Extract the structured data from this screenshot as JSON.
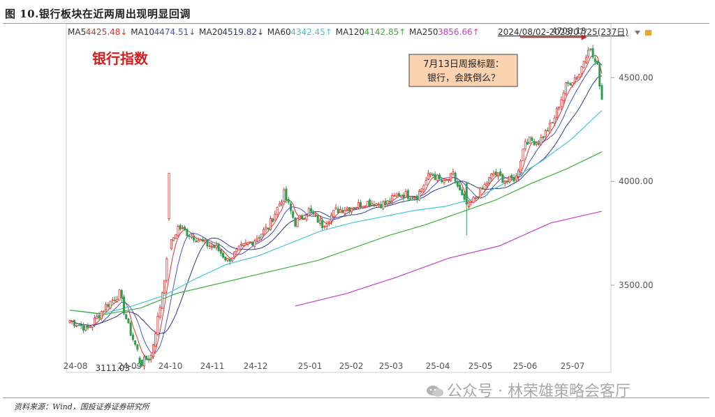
{
  "figure_title": "图 10.银行板块在近两周出现明显回调",
  "source": "资料来源：Wind，国投证券证券研究所",
  "watermark": "公众号 · 林荣雄策略会客厅",
  "colors": {
    "up": "#e0322f",
    "down": "#2e9e4e",
    "ma5": "#e0322f",
    "ma10": "#4a54c8",
    "ma20": "#2a3a8c",
    "ma60": "#3fc7d8",
    "ma120": "#3fae3f",
    "ma250": "#c83ec8",
    "annotation": "#d21e1e",
    "callout_fill": "#fbd3b1"
  },
  "chart_data": {
    "type": "candlestick",
    "title": "银行指数",
    "header": {
      "items": [
        {
          "name": "MA5",
          "value": "4425.48",
          "arrow": "down",
          "color": "#e0322f"
        },
        {
          "name": "MA10",
          "value": "4474.51",
          "arrow": "down",
          "color": "#4a54c8"
        },
        {
          "name": "MA20",
          "value": "4519.82",
          "arrow": "down",
          "color": "#2a3a8c"
        },
        {
          "name": "MA60",
          "value": "4342.45",
          "arrow": "up",
          "color": "#3fc7d8"
        },
        {
          "name": "MA120",
          "value": "4142.85",
          "arrow": "up",
          "color": "#3fae3f"
        },
        {
          "name": "MA250",
          "value": "3856.66",
          "arrow": "up",
          "color": "#c83ec8"
        }
      ],
      "range": "2024/08/02-2025/07/25(237日)"
    },
    "y_ticks": [
      "4500.00",
      "4000.00",
      "3500.00"
    ],
    "y_tick_values": [
      4500,
      4000,
      3500
    ],
    "ylim": [
      3080,
      4760
    ],
    "x_ticks": [
      "24-08",
      "24-09",
      "24-10",
      "24-11",
      "24-12",
      "25-01",
      "25-02",
      "25-03",
      "25-04",
      "25-05",
      "25-06",
      "25-07"
    ],
    "n_days": 237,
    "anchors": [
      [
        0,
        3330
      ],
      [
        8,
        3290
      ],
      [
        16,
        3400
      ],
      [
        22,
        3460
      ],
      [
        26,
        3300
      ],
      [
        32,
        3125
      ],
      [
        36,
        3160
      ],
      [
        40,
        3400
      ],
      [
        44,
        3680
      ],
      [
        48,
        3780
      ],
      [
        54,
        3740
      ],
      [
        60,
        3700
      ],
      [
        65,
        3680
      ],
      [
        70,
        3620
      ],
      [
        76,
        3680
      ],
      [
        82,
        3720
      ],
      [
        88,
        3780
      ],
      [
        95,
        3940
      ],
      [
        100,
        3800
      ],
      [
        106,
        3860
      ],
      [
        112,
        3790
      ],
      [
        118,
        3860
      ],
      [
        126,
        3880
      ],
      [
        132,
        3900
      ],
      [
        140,
        3890
      ],
      [
        146,
        3940
      ],
      [
        154,
        3930
      ],
      [
        160,
        4040
      ],
      [
        166,
        3990
      ],
      [
        170,
        4030
      ],
      [
        176,
        3870
      ],
      [
        182,
        3950
      ],
      [
        188,
        4040
      ],
      [
        194,
        4000
      ],
      [
        198,
        4020
      ],
      [
        202,
        4200
      ],
      [
        208,
        4190
      ],
      [
        214,
        4280
      ],
      [
        220,
        4460
      ],
      [
        226,
        4520
      ],
      [
        230,
        4650
      ],
      [
        234,
        4550
      ],
      [
        236,
        4400
      ]
    ],
    "special_candles": [
      {
        "day": 44,
        "open": 3820,
        "close": 4040,
        "high": 4040,
        "low": 3810
      },
      {
        "day": 176,
        "open": 3990,
        "close": 3890,
        "high": 4000,
        "low": 3740
      },
      {
        "day": 31,
        "open": 3150,
        "close": 3125,
        "high": 3160,
        "low": 3111.03
      }
    ],
    "ma60_values": [
      3380,
      3360,
      3400,
      3450,
      3530,
      3600,
      3640,
      3700,
      3760,
      3800,
      3830,
      3860,
      3880,
      3920,
      4000,
      4090,
      4200,
      4342.45
    ],
    "ma120_values": [
      3380,
      3360,
      3390,
      3460,
      3500,
      3540,
      3580,
      3620,
      3680,
      3740,
      3790,
      3850,
      3910,
      3990,
      4060,
      4142.85
    ],
    "ma250_values": [
      3400,
      3460,
      3540,
      3630,
      3690,
      3800,
      3856.66
    ],
    "ma250_start_day": 100,
    "annotations": {
      "high": {
        "label": "4708.13",
        "day": 230,
        "value": 4708.13
      },
      "low": {
        "label": "3111.03",
        "day": 31,
        "value": 3111.03
      },
      "callout": [
        "7月13日周报标题：",
        "银行，会跌倒么？"
      ]
    }
  }
}
